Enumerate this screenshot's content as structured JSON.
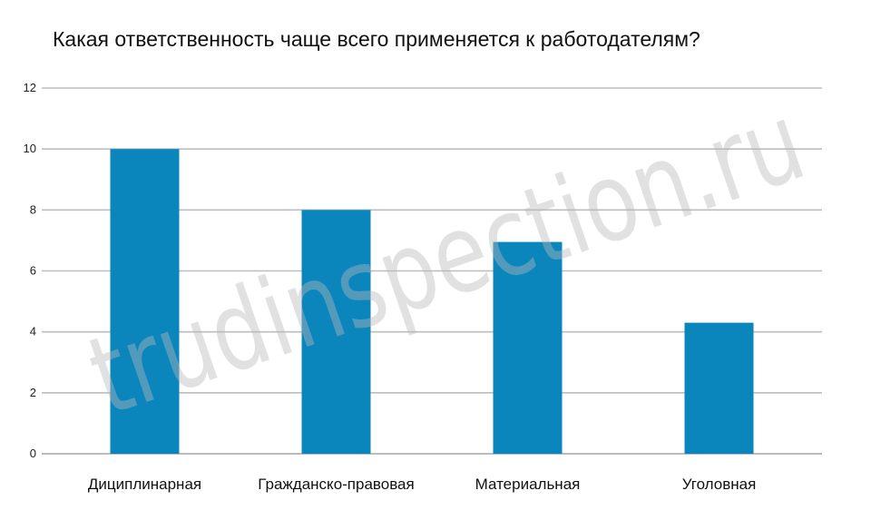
{
  "chart_data": {
    "type": "bar",
    "title": "Какая ответственность чаще всего применяется к работодателям?",
    "categories": [
      "Дициплинарная",
      "Гражданско-правовая",
      "Материальная",
      "Уголовная"
    ],
    "values": [
      10,
      8,
      6.95,
      4.3
    ],
    "ylim": [
      0,
      12
    ],
    "yticks": [
      0,
      2,
      4,
      6,
      8,
      10,
      12
    ],
    "xlabel": "",
    "ylabel": "",
    "grid": true,
    "legend": "none",
    "bar_color": "#0b86bd",
    "grid_color": "#bdbdbd"
  },
  "watermark": "trudinspection.ru"
}
